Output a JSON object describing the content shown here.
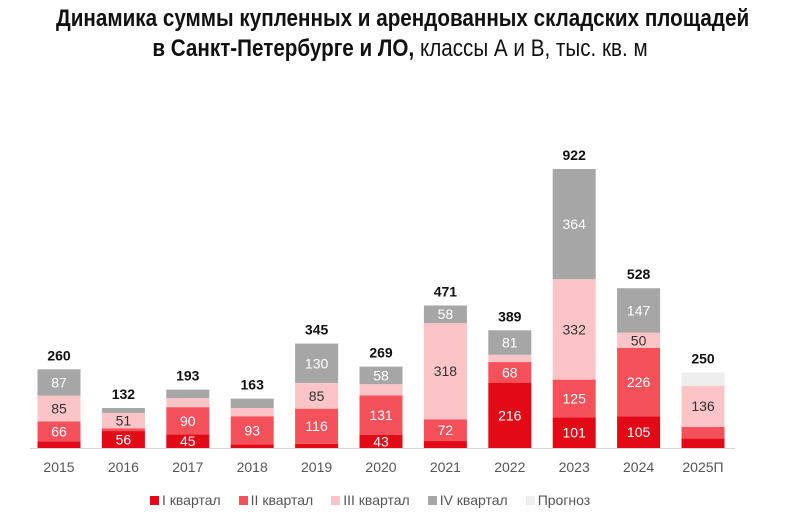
{
  "chart_data": {
    "type": "bar",
    "stacked": true,
    "title_line1": "Динамика суммы купленных и арендованных складских площадей",
    "title_line2_bold": "в Санкт-Петербурге и ЛО,",
    "title_line2_rest": " классы А и В, тыс. кв. м",
    "categories": [
      "2015",
      "2016",
      "2017",
      "2018",
      "2019",
      "2020",
      "2021",
      "2022",
      "2023",
      "2024",
      "2025П"
    ],
    "totals": [
      260,
      132,
      193,
      163,
      345,
      269,
      471,
      389,
      922,
      528,
      250
    ],
    "series": [
      {
        "name": "I квартал",
        "color": "#e20a17",
        "values": [
          22,
          56,
          45,
          12,
          14,
          43,
          23,
          216,
          101,
          105,
          32
        ],
        "labels": [
          null,
          "56",
          "45",
          null,
          null,
          "43",
          null,
          "216",
          "101",
          "105",
          null
        ]
      },
      {
        "name": "II квартал",
        "color": "#f4515b",
        "values": [
          66,
          9,
          90,
          93,
          116,
          131,
          72,
          68,
          125,
          226,
          38
        ],
        "labels": [
          "66",
          null,
          "90",
          "93",
          "116",
          "131",
          "72",
          "68",
          "125",
          "226",
          null
        ]
      },
      {
        "name": "III квартал",
        "color": "#fbc4c7",
        "values": [
          85,
          51,
          30,
          27,
          85,
          37,
          318,
          24,
          332,
          50,
          136
        ],
        "labels": [
          "85",
          "51",
          null,
          null,
          "85",
          null,
          "318",
          null,
          "332",
          "50",
          "136"
        ]
      },
      {
        "name": "IV квартал",
        "color": "#a6a6a6",
        "values": [
          87,
          16,
          28,
          31,
          130,
          58,
          58,
          81,
          364,
          147,
          0
        ],
        "labels": [
          "87",
          null,
          null,
          null,
          "130",
          "58",
          "58",
          "81",
          "364",
          "147",
          null
        ]
      },
      {
        "name": "Прогноз",
        "color": "#eeeeee",
        "values": [
          0,
          0,
          0,
          0,
          0,
          0,
          0,
          0,
          0,
          0,
          44
        ],
        "labels": [
          null,
          null,
          null,
          null,
          null,
          null,
          null,
          null,
          null,
          null,
          null
        ]
      }
    ],
    "ylim": [
      0,
      922
    ],
    "grid": false,
    "legend_position": "bottom"
  }
}
